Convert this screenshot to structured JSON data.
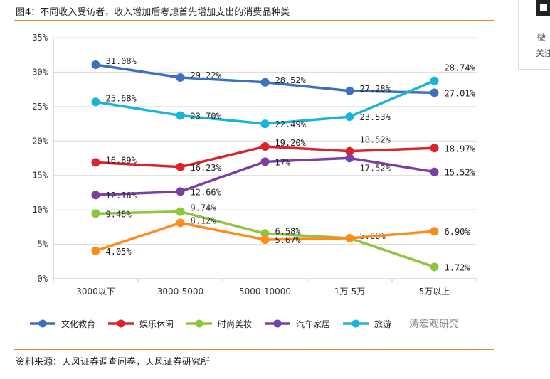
{
  "header": {
    "title": "图4：不同收入受访者，收入增加后考虑首先增加支出的消费品种类"
  },
  "footer": {
    "source": "资料来源：天风证券调查问卷，天风证券研究所"
  },
  "side": {
    "line1": "微",
    "line2": "关注"
  },
  "watermark": "涛宏观研究",
  "colors": {
    "rule": "#e08a2e",
    "series": [
      "#3f6fbf",
      "#d9242b",
      "#8cc63f",
      "#7a3fa3",
      "#18b5d8",
      "#ff8c1a"
    ]
  },
  "chart_data": {
    "type": "line",
    "title": "图4：不同收入受访者，收入增加后考虑首先增加支出的消费品种类",
    "xlabel": "",
    "ylabel": "",
    "categories": [
      "3000以下",
      "3000-5000",
      "5000-10000",
      "1万-5万",
      "5万以上"
    ],
    "ylim": [
      0,
      35
    ],
    "yticks": [
      "0%",
      "5%",
      "10%",
      "15%",
      "20%",
      "25%",
      "30%",
      "35%"
    ],
    "grid": true,
    "legend_position": "bottom",
    "series": [
      {
        "name": "文化教育",
        "values": [
          31.08,
          29.22,
          28.52,
          27.28,
          27.01
        ],
        "labels": [
          "31.08%",
          "29.22%",
          "28.52%",
          "27.28%",
          "27.01%"
        ]
      },
      {
        "name": "娱乐休闲",
        "values": [
          16.89,
          16.23,
          19.2,
          18.52,
          18.97
        ],
        "labels": [
          "16.89%",
          "16.23%",
          "19.20%",
          "18.52%",
          "18.97%"
        ]
      },
      {
        "name": "时尚美妆",
        "values": [
          9.46,
          9.74,
          6.58,
          5.88,
          1.72
        ],
        "labels": [
          "9.46%",
          "9.74%",
          "6.58%",
          "5.88%",
          "1.72%"
        ]
      },
      {
        "name": "汽车家居",
        "values": [
          12.16,
          12.66,
          17.0,
          17.52,
          15.52
        ],
        "labels": [
          "12.16%",
          "12.66%",
          "17%",
          "17.52%",
          "15.52%"
        ]
      },
      {
        "name": "旅游",
        "values": [
          25.68,
          23.7,
          22.49,
          23.53,
          28.74
        ],
        "labels": [
          "25.68%",
          "23.70%",
          "22.49%",
          "23.53%",
          "28.74%"
        ]
      },
      {
        "name": "",
        "values": [
          4.05,
          8.12,
          5.67,
          5.88,
          6.9
        ],
        "labels": [
          "4.05%",
          "8.12%",
          "5.67%",
          "",
          "6.90%"
        ]
      }
    ],
    "legend": [
      "文化教育",
      "娱乐休闲",
      "时尚美妆",
      "汽车家居",
      "旅游"
    ]
  }
}
